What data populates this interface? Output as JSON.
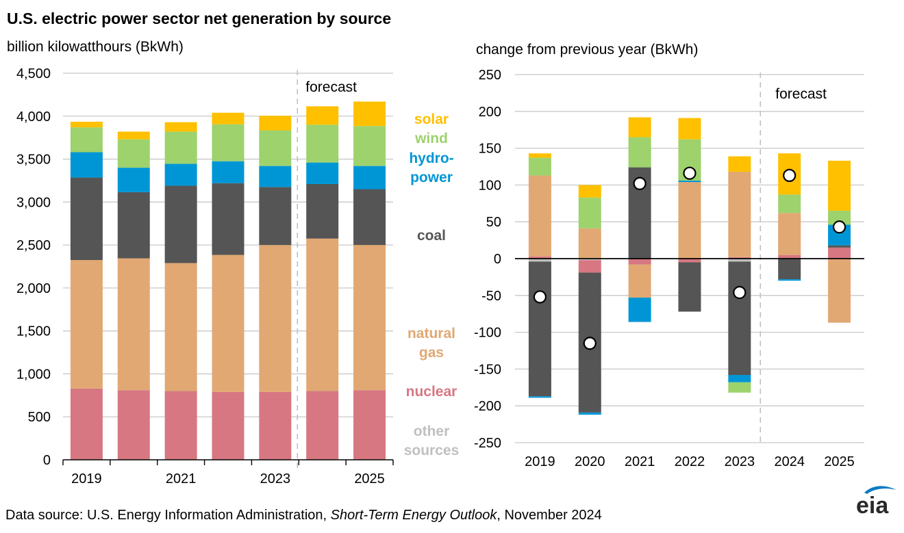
{
  "header": {
    "title": "U.S. electric power sector net generation by source",
    "left_unit": "billion kilowatthours (BkWh)",
    "right_unit": "change from previous year (BkWh)"
  },
  "footer": {
    "source_prefix": "Data source: U.S. Energy Information Administration, ",
    "source_title": "Short-Term Energy Outlook",
    "source_suffix": ", November 2024"
  },
  "logo_text": "eia",
  "colors": {
    "other": "#c0c0c0",
    "nuclear": "#d77782",
    "gas": "#e1a873",
    "coal": "#555555",
    "hydro": "#0096d6",
    "wind": "#9dd26d",
    "solar": "#ffc000",
    "grid": "#c8c8c8",
    "forecast_line": "#bfbfbf"
  },
  "legend": [
    {
      "key": "solar",
      "lines": [
        "solar"
      ],
      "color": "#ffc000"
    },
    {
      "key": "wind",
      "lines": [
        "wind"
      ],
      "color": "#9dd26d"
    },
    {
      "key": "hydro",
      "lines": [
        "hydro-",
        "power"
      ],
      "color": "#0096d6"
    },
    {
      "key": "coal",
      "lines": [
        "coal"
      ],
      "color": "#555555"
    },
    {
      "key": "gas",
      "lines": [
        "natural",
        "gas"
      ],
      "color": "#e1a873"
    },
    {
      "key": "nuclear",
      "lines": [
        "nuclear"
      ],
      "color": "#d77782"
    },
    {
      "key": "other",
      "lines": [
        "other",
        "sources"
      ],
      "color": "#c0c0c0"
    }
  ],
  "chart_data": [
    {
      "type": "bar",
      "stacked": true,
      "ylabel": "billion kilowatthours (BkWh)",
      "ylim": [
        0,
        4500
      ],
      "yticks": [
        0,
        500,
        1000,
        1500,
        2000,
        2500,
        3000,
        3500,
        4000,
        4500
      ],
      "categories": [
        "2019",
        "2020",
        "2021",
        "2022",
        "2023",
        "2024",
        "2025"
      ],
      "xtick_labels": [
        "2019",
        "",
        "2021",
        "",
        "2023",
        "",
        "2025"
      ],
      "forecast_label": "forecast",
      "forecast_start": "2024",
      "series": [
        {
          "key": "other",
          "values": [
            5,
            5,
            5,
            5,
            5,
            5,
            5
          ]
        },
        {
          "key": "nuclear",
          "values": [
            825,
            805,
            795,
            785,
            785,
            795,
            805
          ]
        },
        {
          "key": "gas",
          "values": [
            1495,
            1535,
            1490,
            1595,
            1710,
            1775,
            1690
          ]
        },
        {
          "key": "coal",
          "values": [
            960,
            770,
            900,
            835,
            675,
            635,
            650
          ]
        },
        {
          "key": "hydro",
          "values": [
            295,
            285,
            255,
            255,
            245,
            250,
            270
          ]
        },
        {
          "key": "wind",
          "values": [
            290,
            330,
            375,
            430,
            415,
            440,
            465
          ]
        },
        {
          "key": "solar",
          "values": [
            65,
            90,
            110,
            135,
            170,
            215,
            285
          ]
        }
      ]
    },
    {
      "type": "bar",
      "stacked": true,
      "diverging": true,
      "ylabel": "change from previous year (BkWh)",
      "ylim": [
        -250,
        250
      ],
      "yticks": [
        -250,
        -200,
        -150,
        -100,
        -50,
        0,
        50,
        100,
        150,
        200,
        250
      ],
      "categories": [
        "2019",
        "2020",
        "2021",
        "2022",
        "2023",
        "2024",
        "2025"
      ],
      "forecast_label": "forecast",
      "forecast_start": "2024",
      "series": [
        {
          "key": "other",
          "values": [
            -4,
            -2,
            0,
            0,
            -4,
            0,
            0
          ]
        },
        {
          "key": "nuclear",
          "values": [
            3,
            -17,
            -8,
            -5,
            2,
            5,
            15
          ]
        },
        {
          "key": "gas",
          "values": [
            110,
            41,
            -45,
            104,
            116,
            57,
            -87
          ]
        },
        {
          "key": "coal",
          "values": [
            -183,
            -190,
            124,
            -67,
            -154,
            -28,
            3
          ]
        },
        {
          "key": "hydro",
          "values": [
            -2,
            -3,
            -33,
            2,
            -10,
            -2,
            28
          ]
        },
        {
          "key": "wind",
          "values": [
            24,
            42,
            41,
            56,
            -14,
            25,
            19
          ]
        },
        {
          "key": "solar",
          "values": [
            6,
            17,
            27,
            29,
            21,
            56,
            68
          ]
        }
      ],
      "net_change": [
        -52,
        -115,
        102,
        116,
        -46,
        113,
        43
      ]
    }
  ]
}
